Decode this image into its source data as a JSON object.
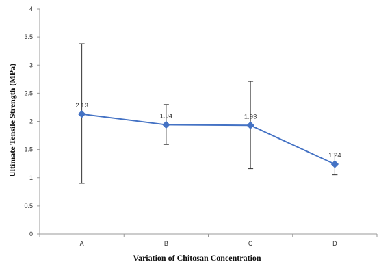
{
  "chart_data": {
    "type": "line",
    "categories": [
      "A",
      "B",
      "C",
      "D"
    ],
    "series": [
      {
        "values": [
          2.13,
          1.94,
          1.93,
          1.24
        ],
        "error_low": [
          0.9,
          1.59,
          1.16,
          1.05
        ],
        "error_high": [
          3.38,
          2.3,
          2.71,
          1.44
        ],
        "data_labels": [
          "2.13",
          "1.94",
          "1.93",
          "1.24"
        ],
        "color": "#4472c4"
      }
    ],
    "yticks": [
      "0",
      "0.5",
      "1",
      "1.5",
      "2",
      "2.5",
      "3",
      "3.5",
      "4"
    ],
    "ylim": [
      0,
      4
    ],
    "xlabel": "Variation of Chitosan Concentration",
    "ylabel": "Ultimate Tensile Strength (MPa)",
    "grid": false,
    "legend": "none",
    "colors": {
      "series": "#4472c4",
      "error_bar": "#333333",
      "axis": "#999999"
    }
  }
}
